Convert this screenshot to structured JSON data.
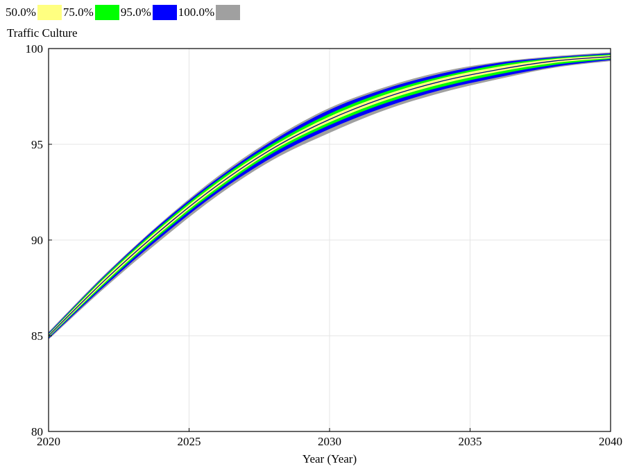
{
  "chart_data": {
    "type": "area",
    "title": "Traffic Culture",
    "xlabel": "Year (Year)",
    "ylabel": "",
    "xlim": [
      2020,
      2040
    ],
    "ylim": [
      80,
      100
    ],
    "xticks": [
      2020,
      2025,
      2030,
      2035,
      2040
    ],
    "yticks": [
      80,
      85,
      90,
      95,
      100
    ],
    "grid": true,
    "legend_position": "top-left",
    "legend": [
      {
        "label": "50.0%",
        "color": "#ffff80"
      },
      {
        "label": "75.0%",
        "color": "#00ff00"
      },
      {
        "label": "95.0%",
        "color": "#0000ff"
      },
      {
        "label": "100.0%",
        "color": "#a0a0a0"
      }
    ],
    "x": [
      2020,
      2022,
      2024,
      2026,
      2028,
      2030,
      2032,
      2034,
      2036,
      2038,
      2040
    ],
    "series": [
      {
        "name": "100.0%",
        "color": "#a0a0a0",
        "lower": [
          84.8,
          87.5,
          90.0,
          92.3,
          94.2,
          95.6,
          96.8,
          97.7,
          98.4,
          99.0,
          99.35
        ],
        "upper": [
          85.2,
          88.2,
          90.9,
          93.3,
          95.3,
          96.9,
          98.0,
          98.8,
          99.3,
          99.6,
          99.8
        ]
      },
      {
        "name": "95.0%",
        "color": "#0000ff",
        "lower": [
          84.85,
          87.6,
          90.15,
          92.45,
          94.35,
          95.8,
          96.95,
          97.85,
          98.5,
          99.05,
          99.4
        ],
        "upper": [
          85.15,
          88.15,
          90.85,
          93.2,
          95.2,
          96.8,
          97.9,
          98.7,
          99.25,
          99.55,
          99.75
        ]
      },
      {
        "name": "75.0%",
        "color": "#00ff00",
        "lower": [
          84.9,
          87.7,
          90.3,
          92.6,
          94.55,
          96.0,
          97.15,
          98.0,
          98.65,
          99.15,
          99.45
        ],
        "upper": [
          85.1,
          88.1,
          90.75,
          93.1,
          95.05,
          96.6,
          97.75,
          98.55,
          99.15,
          99.5,
          99.7
        ]
      },
      {
        "name": "50.0%",
        "color": "#ffff80",
        "lower": [
          84.93,
          87.78,
          90.4,
          92.72,
          94.68,
          96.15,
          97.3,
          98.15,
          98.78,
          99.25,
          99.5
        ],
        "upper": [
          85.07,
          88.02,
          90.65,
          92.98,
          94.92,
          96.45,
          97.6,
          98.45,
          99.05,
          99.45,
          99.65
        ]
      }
    ],
    "median": {
      "color": "#00008b",
      "values": [
        85.0,
        87.9,
        90.52,
        92.85,
        94.8,
        96.3,
        97.45,
        98.3,
        98.9,
        99.35,
        99.58
      ]
    }
  }
}
